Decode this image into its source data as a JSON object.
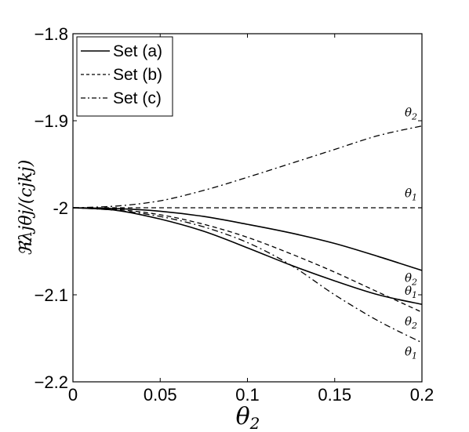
{
  "chart_data": {
    "type": "line",
    "xlabel": "θ2",
    "xlabel_main": "θ",
    "xlabel_sub": "2",
    "ylabel": "ℜλjθj/(cjkj)",
    "xlim": [
      0,
      0.2
    ],
    "ylim": [
      -2.2,
      -1.8
    ],
    "xticks": [
      0,
      0.05,
      0.1,
      0.15,
      0.2
    ],
    "xtick_labels": [
      "0",
      "0.05",
      "0.1",
      "0.15",
      "0.2"
    ],
    "yticks": [
      -2.2,
      -2.1,
      -2.0,
      -1.9,
      -1.8
    ],
    "ytick_labels": [
      "−2.2",
      "−2.1",
      "-2",
      "−1.9",
      "−1.8"
    ],
    "grid": false,
    "legend_position": "top-left",
    "legend": [
      {
        "label": "Set (a)",
        "style": "solid"
      },
      {
        "label": "Set (b)",
        "style": "dashed"
      },
      {
        "label": "Set (c)",
        "style": "dashdot"
      }
    ],
    "series": [
      {
        "set": "a",
        "curve": "θ2",
        "style": "solid",
        "x": [
          0,
          0.025,
          0.05,
          0.075,
          0.1,
          0.125,
          0.15,
          0.175,
          0.2
        ],
        "y": [
          -2.0,
          -2.001,
          -2.004,
          -2.01,
          -2.019,
          -2.029,
          -2.041,
          -2.056,
          -2.072
        ]
      },
      {
        "set": "a",
        "curve": "θ1",
        "style": "solid",
        "x": [
          0,
          0.025,
          0.05,
          0.075,
          0.1,
          0.125,
          0.15,
          0.175,
          0.2
        ],
        "y": [
          -2.0,
          -2.003,
          -2.013,
          -2.027,
          -2.046,
          -2.066,
          -2.084,
          -2.1,
          -2.111
        ]
      },
      {
        "set": "b",
        "curve": "θ1",
        "style": "dashed",
        "x": [
          0,
          0.025,
          0.05,
          0.075,
          0.1,
          0.125,
          0.15,
          0.175,
          0.2
        ],
        "y": [
          -2.0,
          -2.0,
          -2.0,
          -2.0,
          -2.0,
          -2.0,
          -2.0,
          -2.0,
          -2.0
        ]
      },
      {
        "set": "b",
        "curve": "θ2",
        "style": "dashed",
        "x": [
          0,
          0.025,
          0.05,
          0.075,
          0.1,
          0.125,
          0.15,
          0.175,
          0.2
        ],
        "y": [
          -2.0,
          -2.002,
          -2.008,
          -2.019,
          -2.034,
          -2.053,
          -2.074,
          -2.097,
          -2.12
        ]
      },
      {
        "set": "c",
        "curve": "θ2",
        "style": "dashdot",
        "x": [
          0,
          0.025,
          0.05,
          0.075,
          0.1,
          0.125,
          0.15,
          0.175,
          0.2
        ],
        "y": [
          -2.0,
          -1.998,
          -1.992,
          -1.98,
          -1.965,
          -1.949,
          -1.933,
          -1.917,
          -1.906
        ]
      },
      {
        "set": "c",
        "curve": "θ1",
        "style": "dashdot",
        "x": [
          0,
          0.025,
          0.05,
          0.075,
          0.1,
          0.125,
          0.15,
          0.175,
          0.2
        ],
        "y": [
          -2.0,
          -2.003,
          -2.01,
          -2.022,
          -2.04,
          -2.066,
          -2.1,
          -2.13,
          -2.155
        ]
      }
    ],
    "annotations": [
      {
        "main": "θ",
        "sub": "2",
        "x": 0.2,
        "y": -1.895
      },
      {
        "main": "θ",
        "sub": "1",
        "x": 0.2,
        "y": -1.988
      },
      {
        "main": "θ",
        "sub": "2",
        "x": 0.2,
        "y": -2.085
      },
      {
        "main": "θ",
        "sub": "1",
        "x": 0.2,
        "y": -2.1
      },
      {
        "main": "θ",
        "sub": "2",
        "x": 0.2,
        "y": -2.135
      },
      {
        "main": "θ",
        "sub": "1",
        "x": 0.2,
        "y": -2.17
      }
    ]
  }
}
